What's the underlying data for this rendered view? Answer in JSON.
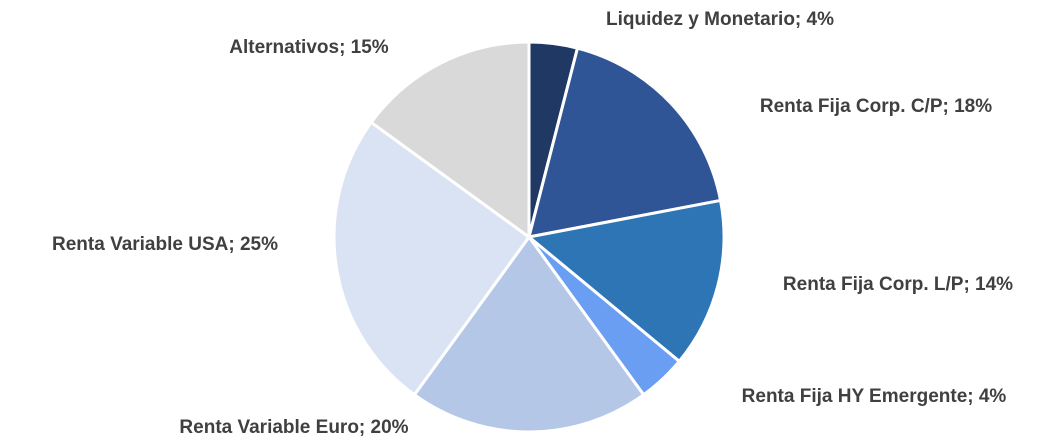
{
  "chart_data": {
    "type": "pie",
    "values": [
      4,
      18,
      14,
      4,
      20,
      25,
      15
    ],
    "value_labels": [
      "Liquidez y Monetario; 4%",
      "Renta Fija Corp. C/P; 18%",
      "Renta Fija Corp. L/P; 14%",
      "Renta Fija HY Emergente; 4%",
      "Renta Variable Euro; 20%",
      "Renta Variable USA; 25%",
      "Alternativos; 15%"
    ],
    "colors": [
      "#203864",
      "#2f5597",
      "#2e75b6",
      "#6a9ef2",
      "#b4c7e7",
      "#dae3f3",
      "#d9d9d9"
    ]
  }
}
